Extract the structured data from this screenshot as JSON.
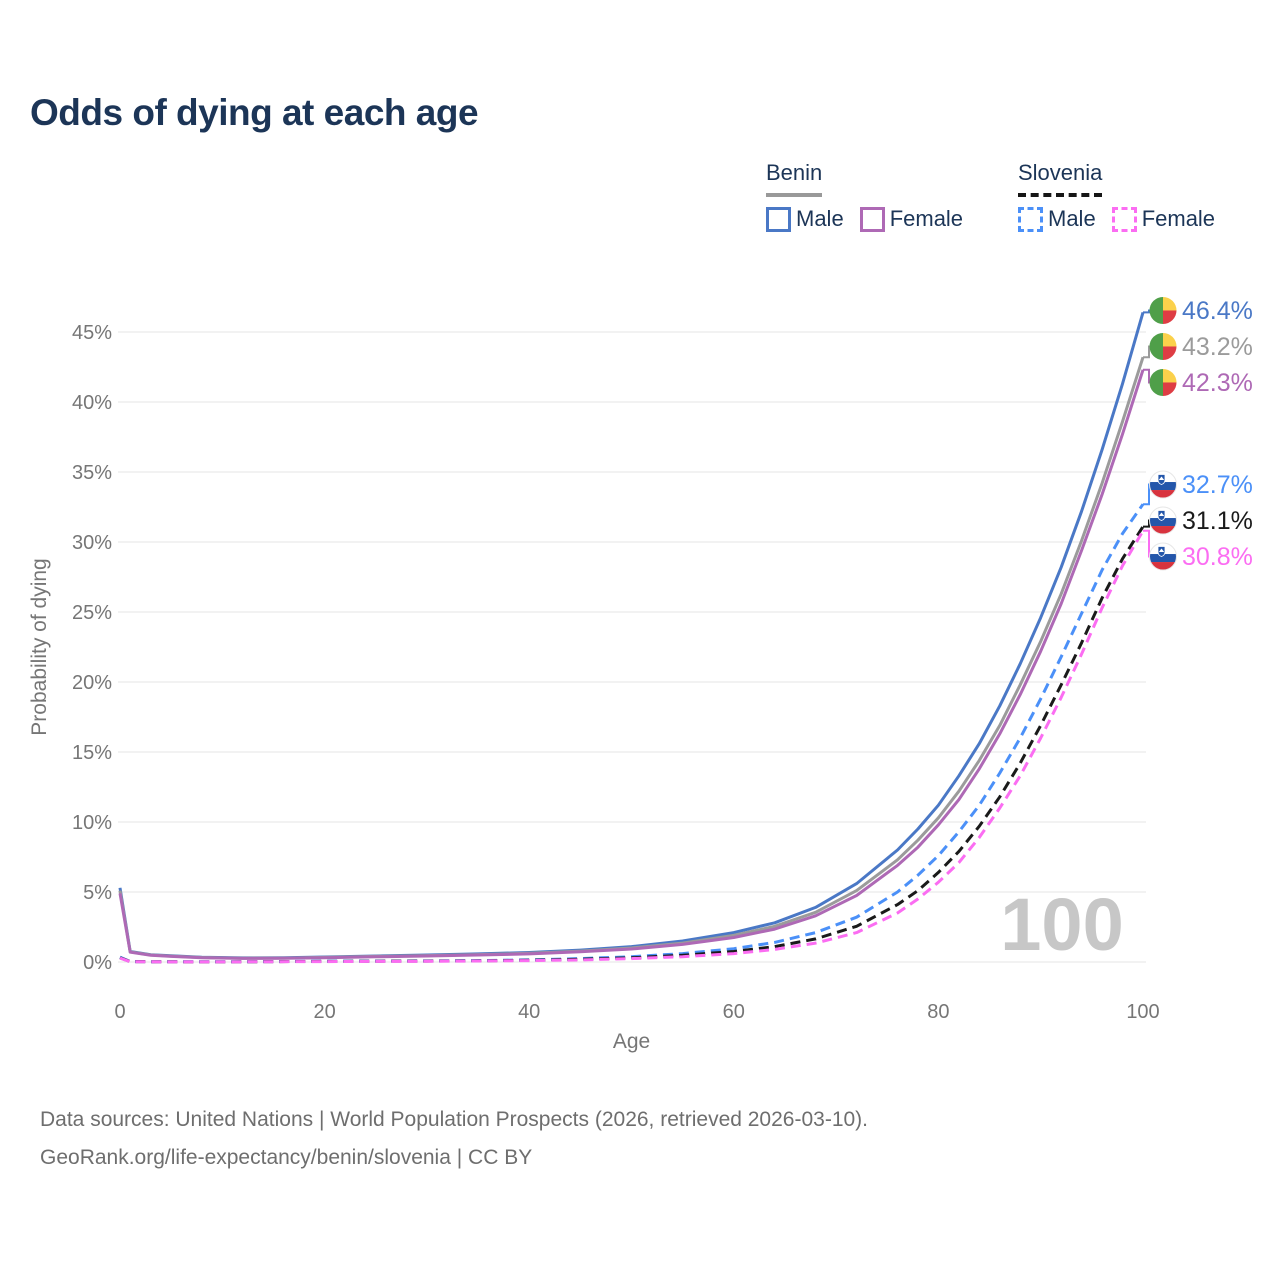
{
  "title": "Odds of dying at each age",
  "watermark_age": "100",
  "legend": {
    "groups": [
      {
        "name": "Benin",
        "line_style": "solid",
        "underline_color": "#999999",
        "items": [
          {
            "label": "Male",
            "color": "#4a78c6"
          },
          {
            "label": "Female",
            "color": "#ae69b5"
          }
        ]
      },
      {
        "name": "Slovenia",
        "line_style": "dashed",
        "underline_color": "#161616",
        "items": [
          {
            "label": "Male",
            "color": "#4b90f8"
          },
          {
            "label": "Female",
            "color": "#fb6df2"
          }
        ]
      }
    ]
  },
  "footer": {
    "line1": "Data sources: United Nations | World Population Prospects (2026, retrieved 2026-03-10).",
    "line2": "GeoRank.org/life-expectancy/benin/slovenia | CC BY"
  },
  "chart_data": {
    "type": "line",
    "title": "Odds of dying at each age",
    "xlabel": "Age",
    "ylabel": "Probability of dying",
    "xlim": [
      0,
      100
    ],
    "ylim": [
      0,
      46.5
    ],
    "grid": true,
    "legend_position": "top-right",
    "x_ticks": [
      0,
      20,
      40,
      60,
      80,
      100
    ],
    "y_ticks": [
      {
        "value": 0,
        "label": "0%"
      },
      {
        "value": 5,
        "label": "5%"
      },
      {
        "value": 10,
        "label": "10%"
      },
      {
        "value": 15,
        "label": "15%"
      },
      {
        "value": 20,
        "label": "20%"
      },
      {
        "value": 25,
        "label": "25%"
      },
      {
        "value": 30,
        "label": "30%"
      },
      {
        "value": 35,
        "label": "35%"
      },
      {
        "value": 40,
        "label": "40%"
      },
      {
        "value": 45,
        "label": "45%"
      }
    ],
    "series": [
      {
        "name": "Benin Male",
        "country": "Benin",
        "sex": "Male",
        "flag": "benin",
        "color": "#4a78c6",
        "dashed": false,
        "end_value": 46.4,
        "end_label": "46.4%",
        "points": [
          [
            0,
            5.3
          ],
          [
            1,
            0.75
          ],
          [
            3,
            0.52
          ],
          [
            5,
            0.44
          ],
          [
            8,
            0.34
          ],
          [
            12,
            0.29
          ],
          [
            16,
            0.3
          ],
          [
            20,
            0.36
          ],
          [
            25,
            0.43
          ],
          [
            30,
            0.5
          ],
          [
            35,
            0.58
          ],
          [
            40,
            0.68
          ],
          [
            45,
            0.85
          ],
          [
            50,
            1.1
          ],
          [
            55,
            1.5
          ],
          [
            60,
            2.1
          ],
          [
            64,
            2.8
          ],
          [
            68,
            3.9
          ],
          [
            72,
            5.6
          ],
          [
            76,
            8.0
          ],
          [
            78,
            9.5
          ],
          [
            80,
            11.2
          ],
          [
            82,
            13.3
          ],
          [
            84,
            15.6
          ],
          [
            86,
            18.3
          ],
          [
            88,
            21.3
          ],
          [
            90,
            24.6
          ],
          [
            92,
            28.2
          ],
          [
            94,
            32.2
          ],
          [
            96,
            36.6
          ],
          [
            98,
            41.3
          ],
          [
            100,
            46.4
          ]
        ]
      },
      {
        "name": "Benin Both sexes",
        "country": "Benin",
        "sex": "Both sexes",
        "flag": "benin",
        "color": "#9b9b9b",
        "dashed": false,
        "end_value": 43.2,
        "end_label": "43.2%",
        "points": [
          [
            0,
            5.1
          ],
          [
            1,
            0.72
          ],
          [
            3,
            0.5
          ],
          [
            5,
            0.42
          ],
          [
            8,
            0.32
          ],
          [
            12,
            0.27
          ],
          [
            16,
            0.28
          ],
          [
            20,
            0.33
          ],
          [
            25,
            0.4
          ],
          [
            30,
            0.46
          ],
          [
            35,
            0.53
          ],
          [
            40,
            0.62
          ],
          [
            45,
            0.78
          ],
          [
            50,
            1.0
          ],
          [
            55,
            1.35
          ],
          [
            60,
            1.9
          ],
          [
            64,
            2.55
          ],
          [
            68,
            3.55
          ],
          [
            72,
            5.1
          ],
          [
            76,
            7.3
          ],
          [
            78,
            8.7
          ],
          [
            80,
            10.3
          ],
          [
            82,
            12.2
          ],
          [
            84,
            14.4
          ],
          [
            86,
            16.9
          ],
          [
            88,
            19.8
          ],
          [
            90,
            22.9
          ],
          [
            92,
            26.3
          ],
          [
            94,
            30.1
          ],
          [
            96,
            34.2
          ],
          [
            98,
            38.6
          ],
          [
            100,
            43.2
          ]
        ]
      },
      {
        "name": "Benin Female",
        "country": "Benin",
        "sex": "Female",
        "flag": "benin",
        "color": "#ae69b5",
        "dashed": false,
        "end_value": 42.3,
        "end_label": "42.3%",
        "points": [
          [
            0,
            4.9
          ],
          [
            1,
            0.7
          ],
          [
            3,
            0.48
          ],
          [
            5,
            0.4
          ],
          [
            8,
            0.31
          ],
          [
            12,
            0.26
          ],
          [
            16,
            0.27
          ],
          [
            20,
            0.31
          ],
          [
            25,
            0.37
          ],
          [
            30,
            0.43
          ],
          [
            35,
            0.5
          ],
          [
            40,
            0.58
          ],
          [
            45,
            0.73
          ],
          [
            50,
            0.93
          ],
          [
            55,
            1.26
          ],
          [
            60,
            1.75
          ],
          [
            64,
            2.35
          ],
          [
            68,
            3.3
          ],
          [
            72,
            4.75
          ],
          [
            76,
            6.9
          ],
          [
            78,
            8.2
          ],
          [
            80,
            9.8
          ],
          [
            82,
            11.6
          ],
          [
            84,
            13.8
          ],
          [
            86,
            16.3
          ],
          [
            88,
            19.1
          ],
          [
            90,
            22.2
          ],
          [
            92,
            25.6
          ],
          [
            94,
            29.4
          ],
          [
            96,
            33.4
          ],
          [
            98,
            37.7
          ],
          [
            100,
            42.3
          ]
        ]
      },
      {
        "name": "Slovenia Male",
        "country": "Slovenia",
        "sex": "Male",
        "flag": "slovenia",
        "color": "#4b90f8",
        "dashed": true,
        "end_value": 32.7,
        "end_label": "32.7%",
        "points": [
          [
            0,
            0.35
          ],
          [
            1,
            0.03
          ],
          [
            5,
            0.015
          ],
          [
            10,
            0.012
          ],
          [
            15,
            0.03
          ],
          [
            20,
            0.06
          ],
          [
            25,
            0.07
          ],
          [
            30,
            0.08
          ],
          [
            35,
            0.1
          ],
          [
            40,
            0.15
          ],
          [
            45,
            0.24
          ],
          [
            50,
            0.38
          ],
          [
            55,
            0.6
          ],
          [
            60,
            0.95
          ],
          [
            64,
            1.4
          ],
          [
            68,
            2.1
          ],
          [
            72,
            3.2
          ],
          [
            76,
            5.0
          ],
          [
            78,
            6.2
          ],
          [
            80,
            7.6
          ],
          [
            82,
            9.3
          ],
          [
            84,
            11.2
          ],
          [
            86,
            13.5
          ],
          [
            88,
            16.0
          ],
          [
            90,
            18.8
          ],
          [
            92,
            21.8
          ],
          [
            94,
            24.9
          ],
          [
            96,
            28.0
          ],
          [
            98,
            30.6
          ],
          [
            100,
            32.7
          ]
        ]
      },
      {
        "name": "Slovenia Both sexes",
        "country": "Slovenia",
        "sex": "Both sexes",
        "flag": "slovenia",
        "color": "#1a1a1a",
        "dashed": true,
        "end_value": 31.1,
        "end_label": "31.1%",
        "points": [
          [
            0,
            0.3
          ],
          [
            1,
            0.025
          ],
          [
            5,
            0.013
          ],
          [
            10,
            0.01
          ],
          [
            15,
            0.025
          ],
          [
            20,
            0.045
          ],
          [
            25,
            0.055
          ],
          [
            30,
            0.065
          ],
          [
            35,
            0.085
          ],
          [
            40,
            0.12
          ],
          [
            45,
            0.19
          ],
          [
            50,
            0.3
          ],
          [
            55,
            0.48
          ],
          [
            60,
            0.75
          ],
          [
            64,
            1.1
          ],
          [
            68,
            1.65
          ],
          [
            72,
            2.55
          ],
          [
            76,
            4.1
          ],
          [
            78,
            5.1
          ],
          [
            80,
            6.4
          ],
          [
            82,
            7.9
          ],
          [
            84,
            9.7
          ],
          [
            86,
            11.8
          ],
          [
            88,
            14.2
          ],
          [
            90,
            16.9
          ],
          [
            92,
            19.8
          ],
          [
            94,
            22.8
          ],
          [
            96,
            26.0
          ],
          [
            98,
            28.8
          ],
          [
            100,
            31.1
          ]
        ]
      },
      {
        "name": "Slovenia Female",
        "country": "Slovenia",
        "sex": "Female",
        "flag": "slovenia",
        "color": "#fb6df2",
        "dashed": true,
        "end_value": 30.8,
        "end_label": "30.8%",
        "points": [
          [
            0,
            0.28
          ],
          [
            1,
            0.02
          ],
          [
            5,
            0.01
          ],
          [
            10,
            0.008
          ],
          [
            15,
            0.02
          ],
          [
            20,
            0.03
          ],
          [
            25,
            0.04
          ],
          [
            30,
            0.05
          ],
          [
            35,
            0.07
          ],
          [
            40,
            0.1
          ],
          [
            45,
            0.15
          ],
          [
            50,
            0.24
          ],
          [
            55,
            0.38
          ],
          [
            60,
            0.6
          ],
          [
            64,
            0.9
          ],
          [
            68,
            1.35
          ],
          [
            72,
            2.1
          ],
          [
            76,
            3.5
          ],
          [
            78,
            4.5
          ],
          [
            80,
            5.7
          ],
          [
            82,
            7.1
          ],
          [
            84,
            8.9
          ],
          [
            86,
            11.0
          ],
          [
            88,
            13.3
          ],
          [
            90,
            16.0
          ],
          [
            92,
            18.9
          ],
          [
            94,
            22.0
          ],
          [
            96,
            25.3
          ],
          [
            98,
            28.3
          ],
          [
            100,
            30.8
          ]
        ]
      }
    ]
  }
}
